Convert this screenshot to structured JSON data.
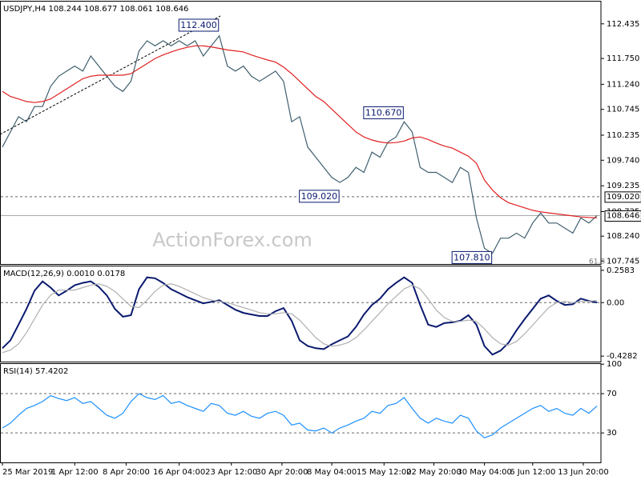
{
  "chart_data": [
    {
      "type": "line",
      "title": "USDJPY,H4  108.244 108.677 108.061 108.646",
      "xlim": [
        0,
        74
      ],
      "ylim": [
        107.69,
        112.89
      ],
      "yticks": [
        112.435,
        {
          "value": 111.75,
          "label": "111.750"
        },
        {
          "value": 111.24,
          "label": "111.240"
        },
        110.745,
        110.235,
        {
          "value": 109.74,
          "label": "109.740"
        },
        109.235,
        108.725,
        {
          "value": 108.24,
          "label": "108.240"
        },
        107.745
      ],
      "series": [
        {
          "color": "#3f5f6e",
          "values": [
            110.0,
            110.3,
            110.6,
            110.5,
            110.8,
            110.8,
            111.2,
            111.4,
            111.5,
            111.6,
            111.5,
            111.8,
            111.6,
            111.4,
            111.2,
            111.1,
            111.3,
            111.9,
            112.1,
            112.0,
            112.1,
            112.0,
            112.1,
            112.0,
            112.1,
            111.8,
            112.0,
            112.2,
            111.6,
            111.5,
            111.6,
            111.4,
            111.3,
            111.4,
            111.5,
            111.3,
            110.5,
            110.6,
            110.0,
            109.8,
            109.6,
            109.4,
            109.3,
            109.4,
            109.6,
            109.5,
            109.9,
            109.8,
            110.1,
            110.2,
            110.5,
            110.3,
            109.6,
            109.5,
            109.5,
            109.4,
            109.3,
            109.6,
            109.5,
            108.6,
            108.0,
            107.9,
            108.2,
            108.2,
            108.3,
            108.2,
            108.5,
            108.7,
            108.5,
            108.5,
            108.4,
            108.3,
            108.6,
            108.5,
            108.646
          ]
        },
        {
          "color": "#e02020",
          "values": [
            111.1,
            111.0,
            110.95,
            110.9,
            110.88,
            110.9,
            110.95,
            111.05,
            111.15,
            111.25,
            111.35,
            111.4,
            111.42,
            111.42,
            111.42,
            111.42,
            111.45,
            111.55,
            111.65,
            111.75,
            111.82,
            111.88,
            111.93,
            111.97,
            112.0,
            112.0,
            111.98,
            111.95,
            111.92,
            111.9,
            111.88,
            111.82,
            111.77,
            111.72,
            111.68,
            111.58,
            111.45,
            111.3,
            111.15,
            111.0,
            110.9,
            110.75,
            110.6,
            110.45,
            110.3,
            110.2,
            110.14,
            110.1,
            110.08,
            110.09,
            110.12,
            110.18,
            110.2,
            110.15,
            110.08,
            110.02,
            109.98,
            109.9,
            109.82,
            109.68,
            109.35,
            109.15,
            109.0,
            108.9,
            108.85,
            108.8,
            108.75,
            108.72,
            108.7,
            108.68,
            108.66,
            108.64,
            108.62,
            108.61,
            108.6
          ]
        }
      ],
      "levels": [
        {
          "value": 109.02,
          "label": "109.020",
          "style": "dashed"
        },
        {
          "value": 108.646,
          "label": "108.646",
          "style": "solid"
        }
      ],
      "annotations": [
        {
          "label": "112.400",
          "value": 112.4,
          "x": 27
        },
        {
          "label": "110.670",
          "value": 110.67,
          "x": 50
        },
        {
          "label": "109.020",
          "value": 109.02,
          "x": 42
        },
        {
          "label": "107.810",
          "value": 107.81,
          "x": 61
        }
      ],
      "watermark": "ActionForex.com",
      "fib_label": "61.8"
    },
    {
      "type": "line",
      "title": "MACD(12,26,9) 0.0010 0.0178",
      "xlim": [
        0,
        74
      ],
      "ylim": [
        -0.472,
        0.296
      ],
      "yticks": [
        0.2583,
        {
          "value": 0,
          "label": "0.00"
        },
        -0.4282
      ],
      "levels": [
        {
          "value": 0,
          "style": "dashed"
        }
      ],
      "series": [
        {
          "color": "#0a1a6e",
          "values": [
            -0.365,
            -0.302,
            -0.176,
            -0.05,
            0.095,
            0.17,
            0.12,
            0.057,
            0.095,
            0.139,
            0.158,
            0.17,
            0.126,
            0.057,
            -0.05,
            -0.113,
            -0.101,
            0.107,
            0.202,
            0.195,
            0.158,
            0.107,
            0.076,
            0.044,
            0.019,
            -0.006,
            0.006,
            0.019,
            -0.019,
            -0.057,
            -0.082,
            -0.095,
            -0.107,
            -0.107,
            -0.069,
            -0.044,
            -0.145,
            -0.302,
            -0.347,
            -0.365,
            -0.372,
            -0.334,
            -0.302,
            -0.271,
            -0.195,
            -0.095,
            -0.019,
            0.032,
            0.107,
            0.158,
            0.202,
            0.158,
            -0.019,
            -0.176,
            -0.195,
            -0.164,
            -0.158,
            -0.145,
            -0.101,
            -0.176,
            -0.347,
            -0.416,
            -0.384,
            -0.321,
            -0.221,
            -0.132,
            -0.05,
            0.032,
            0.057,
            0.013,
            -0.019,
            -0.013,
            0.032,
            0.013,
            0.001
          ]
        },
        {
          "color": "#b0b0b0",
          "values": [
            -0.4,
            -0.38,
            -0.33,
            -0.24,
            -0.13,
            -0.02,
            0.06,
            0.1,
            0.1,
            0.1,
            0.12,
            0.14,
            0.15,
            0.13,
            0.09,
            0.03,
            -0.03,
            -0.04,
            0.02,
            0.09,
            0.14,
            0.15,
            0.13,
            0.1,
            0.07,
            0.04,
            0.02,
            0.01,
            0.0,
            -0.02,
            -0.04,
            -0.06,
            -0.08,
            -0.09,
            -0.09,
            -0.08,
            -0.09,
            -0.14,
            -0.21,
            -0.28,
            -0.33,
            -0.35,
            -0.34,
            -0.32,
            -0.28,
            -0.22,
            -0.15,
            -0.08,
            -0.01,
            0.05,
            0.11,
            0.14,
            0.11,
            0.03,
            -0.06,
            -0.12,
            -0.15,
            -0.15,
            -0.14,
            -0.15,
            -0.21,
            -0.28,
            -0.33,
            -0.34,
            -0.31,
            -0.25,
            -0.18,
            -0.11,
            -0.04,
            0.0,
            0.01,
            0.0,
            0.01,
            0.01,
            0.0178
          ]
        }
      ]
    },
    {
      "type": "line",
      "title": "RSI(14) 57.4202",
      "xlim": [
        0,
        74
      ],
      "ylim": [
        0,
        101
      ],
      "yticks": [
        100,
        70,
        30
      ],
      "levels": [
        {
          "value": 70,
          "style": "dashed"
        },
        {
          "value": 30,
          "style": "dashed"
        }
      ],
      "series": [
        {
          "color": "#1e90ff",
          "values": [
            35,
            40,
            48,
            55,
            58,
            62,
            68,
            65,
            63,
            66,
            60,
            62,
            55,
            48,
            45,
            50,
            62,
            70,
            66,
            64,
            68,
            60,
            62,
            58,
            55,
            52,
            60,
            58,
            50,
            48,
            52,
            47,
            45,
            50,
            52,
            48,
            38,
            40,
            33,
            32,
            35,
            30,
            35,
            38,
            42,
            45,
            52,
            50,
            58,
            60,
            66,
            55,
            45,
            40,
            45,
            42,
            40,
            48,
            45,
            32,
            25,
            28,
            35,
            40,
            45,
            50,
            55,
            58,
            52,
            55,
            50,
            48,
            55,
            50,
            57.4202
          ]
        }
      ],
      "xticks": [
        {
          "value": 0,
          "label": "25 Mar 2019"
        },
        {
          "value": 9,
          "label": "1 Apr 12:00"
        },
        {
          "value": 15.4,
          "label": "8 Apr 20:00"
        },
        {
          "value": 22,
          "label": "16 Apr 04:00"
        },
        {
          "value": 28.5,
          "label": "23 Apr 12:00"
        },
        {
          "value": 34.8,
          "label": "30 Apr 20:00"
        },
        {
          "value": 41,
          "label": "8 May 04:00"
        },
        {
          "value": 47.5,
          "label": "15 May 12:00"
        },
        {
          "value": 53.7,
          "label": "22 May 20:00"
        },
        {
          "value": 60,
          "label": "30 May 04:00"
        },
        {
          "value": 66,
          "label": "6 Jun 12:00"
        },
        {
          "value": 72.3,
          "label": "13 Jun 20:00"
        }
      ]
    }
  ]
}
